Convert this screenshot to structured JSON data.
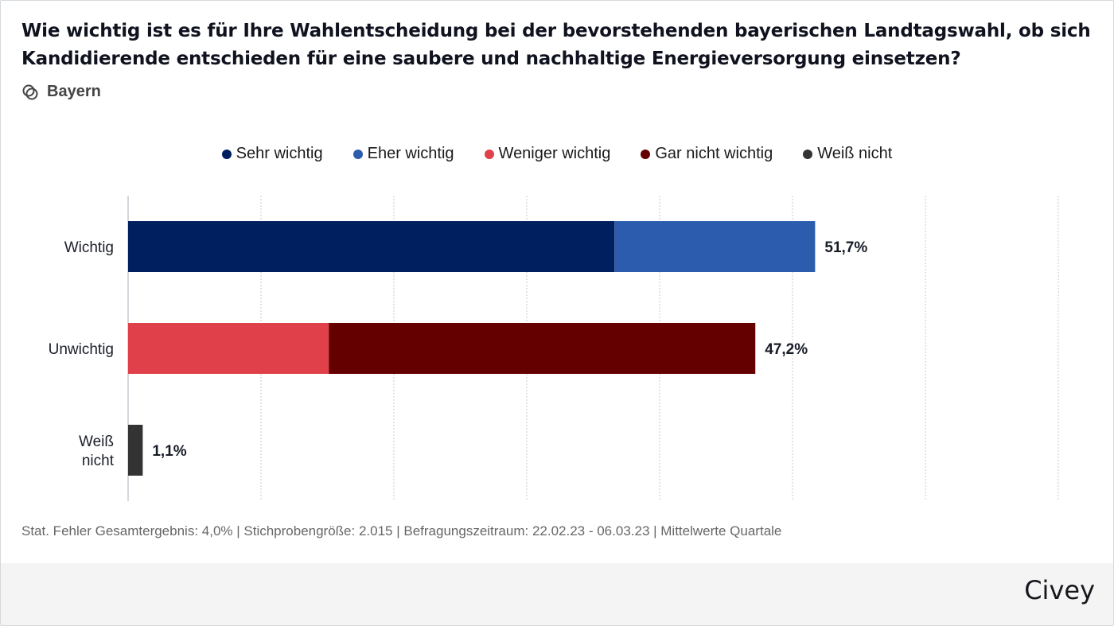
{
  "title": "Wie wichtig ist es für Ihre Wahlentscheidung bei der bevorstehenden bayerischen Landtagswahl, ob sich Kandidierende entschieden für eine saubere und nachhaltige Energieversorgung einsetzen?",
  "region": {
    "icon": "region-circles-icon",
    "label": "Bayern"
  },
  "footer_note": "Stat. Fehler Gesamtergebnis: 4,0% | Stichprobengröße: 2.015 | Befragungszeitraum: 22.02.23 - 06.03.23 | Mittelwerte Quartale",
  "brand": "Civey",
  "chart_data": {
    "type": "bar",
    "orientation": "horizontal",
    "stacked": true,
    "title": "Wie wichtig ist es für Ihre Wahlentscheidung bei der bevorstehenden bayerischen Landtagswahl, ob sich Kandidierende entschieden für eine saubere und nachhaltige Energieversorgung einsetzen?",
    "categories": [
      [
        "Wichtig"
      ],
      [
        "Unwichtig"
      ],
      [
        "Weiß",
        "nicht"
      ]
    ],
    "category_names": [
      "Wichtig",
      "Unwichtig",
      "Weiß nicht"
    ],
    "series": [
      {
        "name": "Sehr wichtig",
        "color": "#001f5f",
        "values": [
          36.6,
          0,
          0
        ]
      },
      {
        "name": "Eher wichtig",
        "color": "#2b5cad",
        "values": [
          15.1,
          0,
          0
        ]
      },
      {
        "name": "Weniger wichtig",
        "color": "#e0404a",
        "values": [
          0,
          15.1,
          0
        ]
      },
      {
        "name": "Gar nicht wichtig",
        "color": "#650000",
        "values": [
          0,
          32.1,
          0
        ]
      },
      {
        "name": "Weiß nicht",
        "color": "#333333",
        "values": [
          0,
          0,
          1.1
        ]
      }
    ],
    "totals": [
      51.7,
      47.2,
      1.1
    ],
    "total_labels": [
      "51,7%",
      "47,2%",
      "1,1%"
    ],
    "xlim": [
      0,
      70
    ],
    "grid_step": 10,
    "grid": true,
    "xlabel": "",
    "ylabel": "",
    "legend_position": "top-center"
  }
}
